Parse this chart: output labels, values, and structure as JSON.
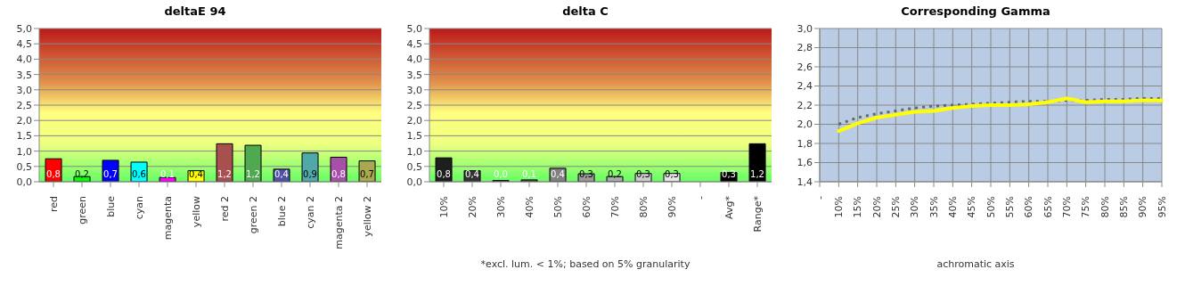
{
  "chart_data": [
    {
      "type": "bar",
      "title": "deltaE 94",
      "categories": [
        "red",
        "green",
        "blue",
        "cyan",
        "magenta",
        "yellow",
        "red 2",
        "green 2",
        "blue 2",
        "cyan 2",
        "magenta 2",
        "yellow 2"
      ],
      "values": [
        0.75,
        0.17,
        0.7,
        0.64,
        0.14,
        0.36,
        1.24,
        1.19,
        0.41,
        0.94,
        0.8,
        0.68
      ],
      "colors": [
        "#ff0000",
        "#00ff00",
        "#0000ff",
        "#00ffff",
        "#ff00ff",
        "#ffff00",
        "#a85050",
        "#50a850",
        "#5050a8",
        "#50a8a8",
        "#a850a8",
        "#a8a850"
      ],
      "value_labels": [
        "0,8",
        "0,2",
        "0,7",
        "0,6",
        "0,1",
        "0,4",
        "1,2",
        "1,2",
        "0,4",
        "0,9",
        "0,8",
        "0,7"
      ],
      "ylim": [
        0,
        5
      ],
      "yticks": [
        {
          "value": 0,
          "label": "0,0"
        },
        {
          "value": 0.5,
          "label": "0,5"
        },
        {
          "value": 1,
          "label": "1,0"
        },
        {
          "value": 1.5,
          "label": "1,5"
        },
        {
          "value": 2,
          "label": "2,0"
        },
        {
          "value": 2.5,
          "label": "2,5"
        },
        {
          "value": 3,
          "label": "3,0"
        },
        {
          "value": 3.5,
          "label": "3,5"
        },
        {
          "value": 4,
          "label": "4,0"
        },
        {
          "value": 4.5,
          "label": "4,5"
        },
        {
          "value": 5,
          "label": "5,0"
        }
      ],
      "grid": "y"
    },
    {
      "type": "bar",
      "title": "delta C",
      "categories": [
        "10%",
        "20%",
        "30%",
        "40%",
        "50%",
        "60%",
        "70%",
        "80%",
        "90%",
        "-",
        "Avg*",
        "Range*"
      ],
      "values": [
        0.78,
        0.36,
        0.04,
        0.06,
        0.44,
        0.26,
        0.17,
        0.27,
        0.27,
        null,
        0.3,
        1.24
      ],
      "colors": [
        "#1e1e1e",
        "#333333",
        "#444444",
        "#555555",
        "#808080",
        "#999999",
        "#aaaaaa",
        "#cccccc",
        "#e6e6e6",
        "#000000",
        "#000000",
        "#000000"
      ],
      "value_labels": [
        "0,8",
        "0,4",
        "0,0",
        "0,1",
        "0,4",
        "0,3",
        "0,2",
        "0,3",
        "0,3",
        null,
        "0,3",
        "1,2"
      ],
      "ylim": [
        0,
        5
      ],
      "yticks": [
        {
          "value": 0,
          "label": "0,0"
        },
        {
          "value": 0.5,
          "label": "0,5"
        },
        {
          "value": 1,
          "label": "1,0"
        },
        {
          "value": 1.5,
          "label": "1,5"
        },
        {
          "value": 2,
          "label": "2,0"
        },
        {
          "value": 2.5,
          "label": "2,5"
        },
        {
          "value": 3,
          "label": "3,0"
        },
        {
          "value": 3.5,
          "label": "3,5"
        },
        {
          "value": 4,
          "label": "4,0"
        },
        {
          "value": 4.5,
          "label": "4,5"
        },
        {
          "value": 5,
          "label": "5,0"
        }
      ],
      "grid": "y",
      "annotations": [
        "*excl. lum. < 1%; based on 5% granularity"
      ]
    },
    {
      "type": "line",
      "title": "Corresponding Gamma",
      "xlabel": "achromatic axis",
      "categories": [
        "-",
        "10%",
        "15%",
        "20%",
        "25%",
        "30%",
        "35%",
        "40%",
        "45%",
        "50%",
        "55%",
        "60%",
        "65%",
        "70%",
        "75%",
        "80%",
        "85%",
        "90%",
        "95%"
      ],
      "series": [
        {
          "color": "#666666",
          "line_style": "dotted",
          "values": [
            null,
            2.0,
            2.07,
            2.11,
            2.14,
            2.17,
            2.19,
            2.2,
            2.21,
            2.22,
            2.23,
            2.24,
            2.24,
            2.25,
            2.25,
            2.26,
            2.26,
            2.27,
            2.27
          ]
        },
        {
          "color": "#ffff00",
          "line_style": "solid",
          "values": [
            null,
            1.93,
            2.01,
            2.07,
            2.1,
            2.13,
            2.14,
            2.17,
            2.19,
            2.2,
            2.2,
            2.21,
            2.23,
            2.27,
            2.23,
            2.24,
            2.24,
            2.25,
            2.25
          ]
        }
      ],
      "ylim": [
        1.4,
        3.0
      ],
      "yticks": [
        {
          "value": 1.4,
          "label": "1,4"
        },
        {
          "value": 1.6,
          "label": "1,6"
        },
        {
          "value": 1.8,
          "label": "1,8"
        },
        {
          "value": 2.0,
          "label": "2,0"
        },
        {
          "value": 2.2,
          "label": "2,2"
        },
        {
          "value": 2.4,
          "label": "2,4"
        },
        {
          "value": 2.6,
          "label": "2,6"
        },
        {
          "value": 2.8,
          "label": "2,8"
        },
        {
          "value": 3.0,
          "label": "3,0"
        }
      ],
      "grid": true,
      "marker": "none"
    }
  ]
}
